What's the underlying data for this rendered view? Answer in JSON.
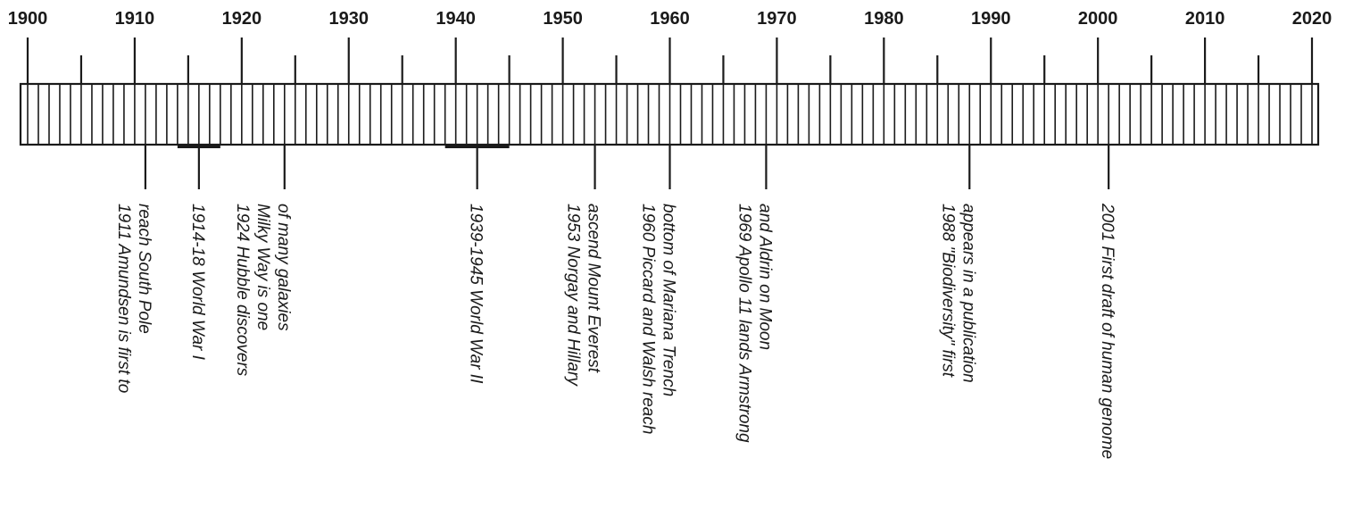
{
  "timeline": {
    "start_year": 1900,
    "end_year": 2020,
    "decade_labels": [
      "1900",
      "1910",
      "1920",
      "1930",
      "1940",
      "1950",
      "1960",
      "1970",
      "1980",
      "1990",
      "2000",
      "2010",
      "2020"
    ],
    "events": [
      {
        "year": 1911,
        "lines": [
          "1911 Amundsen is first to",
          "reach South Pole"
        ]
      },
      {
        "year": 1916,
        "start": 1914,
        "end": 1918,
        "lines": [
          "1914-18 World War I"
        ]
      },
      {
        "year": 1924,
        "lines": [
          "1924 Hubble discovers",
          "Milky Way is one",
          "of many galaxies"
        ]
      },
      {
        "year": 1942,
        "start": 1939,
        "end": 1945,
        "lines": [
          "1939-1945 World War II"
        ]
      },
      {
        "year": 1953,
        "lines": [
          "1953 Norgay and Hillary",
          "ascend Mount Everest"
        ]
      },
      {
        "year": 1960,
        "lines": [
          "1960 Piccard and Walsh reach",
          "bottom of Mariana Trench"
        ]
      },
      {
        "year": 1969,
        "lines": [
          "1969 Apollo 11 lands Armstrong",
          "and Aldrin on Moon"
        ]
      },
      {
        "year": 1988,
        "lines": [
          "1988 \"Biodiversity\" first",
          "appears in a publication"
        ]
      },
      {
        "year": 2001,
        "lines": [
          "2001 First draft of human genome"
        ]
      }
    ]
  },
  "colors": {
    "ink": "#1a1a1a",
    "background": "#ffffff"
  }
}
